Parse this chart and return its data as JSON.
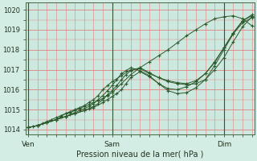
{
  "title": "",
  "xlabel": "Pression niveau de la mer( hPa )",
  "bg_color": "#d4ede4",
  "plot_bg_color": "#cce8df",
  "grid_color_minor": "#e08080",
  "grid_color_major": "#e08080",
  "vline_color": "#335533",
  "line_color": "#2d5a2d",
  "marker_color": "#2d5a2d",
  "ylim": [
    1013.75,
    1020.35
  ],
  "xlim": [
    -0.5,
    48.5
  ],
  "yticks": [
    1014,
    1015,
    1016,
    1017,
    1018,
    1019,
    1020
  ],
  "ytick_fontsize": 6.0,
  "xtick_labels": [
    "Ven",
    "Sam",
    "Dim"
  ],
  "xtick_positions": [
    0,
    18,
    42
  ],
  "vline_positions": [
    0,
    18,
    42
  ],
  "series": [
    {
      "x": [
        0,
        1,
        2,
        3,
        4,
        5,
        6,
        7,
        8,
        9,
        10,
        11,
        12,
        13,
        14,
        15,
        16,
        17,
        18,
        20,
        22,
        24,
        26,
        28,
        30,
        32,
        34,
        36,
        38,
        40,
        42,
        44,
        46,
        48
      ],
      "y": [
        1014.1,
        1014.15,
        1014.2,
        1014.3,
        1014.4,
        1014.5,
        1014.6,
        1014.7,
        1014.8,
        1014.85,
        1014.95,
        1015.05,
        1015.15,
        1015.25,
        1015.35,
        1015.45,
        1015.55,
        1015.7,
        1015.85,
        1016.3,
        1016.75,
        1017.1,
        1017.4,
        1017.7,
        1018.0,
        1018.35,
        1018.7,
        1019.0,
        1019.3,
        1019.55,
        1019.65,
        1019.7,
        1019.55,
        1019.2
      ]
    },
    {
      "x": [
        0,
        2,
        4,
        6,
        8,
        10,
        12,
        14,
        16,
        17,
        18,
        19,
        20,
        21,
        22,
        24,
        26,
        28,
        30,
        32,
        34,
        36,
        38,
        40,
        42,
        44,
        46,
        48
      ],
      "y": [
        1014.1,
        1014.2,
        1014.35,
        1014.5,
        1014.65,
        1014.8,
        1014.95,
        1015.1,
        1015.35,
        1015.5,
        1015.65,
        1015.8,
        1016.0,
        1016.3,
        1016.6,
        1016.9,
        1016.65,
        1016.3,
        1016.05,
        1016.0,
        1016.15,
        1016.4,
        1016.8,
        1017.4,
        1018.1,
        1018.8,
        1019.35,
        1019.6
      ]
    },
    {
      "x": [
        0,
        2,
        4,
        6,
        8,
        10,
        12,
        13,
        14,
        15,
        16,
        17,
        18,
        19,
        20,
        21,
        22,
        24,
        26,
        28,
        30,
        32,
        34,
        36,
        38,
        40,
        42,
        44,
        46,
        48
      ],
      "y": [
        1014.1,
        1014.2,
        1014.35,
        1014.5,
        1014.65,
        1014.8,
        1014.95,
        1015.05,
        1015.15,
        1015.3,
        1015.5,
        1015.75,
        1015.95,
        1016.2,
        1016.5,
        1016.75,
        1016.95,
        1017.1,
        1016.85,
        1016.6,
        1016.4,
        1016.3,
        1016.25,
        1016.3,
        1016.5,
        1017.0,
        1017.6,
        1018.4,
        1019.15,
        1019.65
      ]
    },
    {
      "x": [
        0,
        2,
        4,
        6,
        7,
        8,
        9,
        10,
        11,
        12,
        13,
        14,
        15,
        16,
        17,
        18,
        20,
        22,
        24,
        26,
        28,
        30,
        32,
        34,
        36,
        38,
        40,
        42,
        44,
        46,
        48
      ],
      "y": [
        1014.1,
        1014.2,
        1014.35,
        1014.5,
        1014.65,
        1014.8,
        1014.9,
        1015.0,
        1015.1,
        1015.2,
        1015.35,
        1015.5,
        1015.7,
        1016.0,
        1016.2,
        1016.4,
        1016.7,
        1017.0,
        1017.05,
        1016.8,
        1016.6,
        1016.45,
        1016.35,
        1016.3,
        1016.45,
        1016.8,
        1017.35,
        1018.1,
        1018.85,
        1019.45,
        1019.75
      ]
    },
    {
      "x": [
        0,
        2,
        4,
        6,
        8,
        9,
        10,
        11,
        12,
        13,
        14,
        15,
        16,
        17,
        18,
        19,
        20,
        21,
        22,
        24,
        26,
        28,
        30,
        32,
        34,
        36,
        38,
        40,
        42,
        44,
        46,
        48
      ],
      "y": [
        1014.1,
        1014.2,
        1014.35,
        1014.5,
        1014.65,
        1014.75,
        1014.85,
        1014.95,
        1015.05,
        1015.15,
        1015.3,
        1015.5,
        1015.7,
        1015.95,
        1016.2,
        1016.5,
        1016.8,
        1016.95,
        1017.1,
        1016.95,
        1016.7,
        1016.3,
        1015.95,
        1015.8,
        1015.85,
        1016.1,
        1016.5,
        1017.2,
        1018.0,
        1018.8,
        1019.45,
        1019.7
      ]
    }
  ]
}
